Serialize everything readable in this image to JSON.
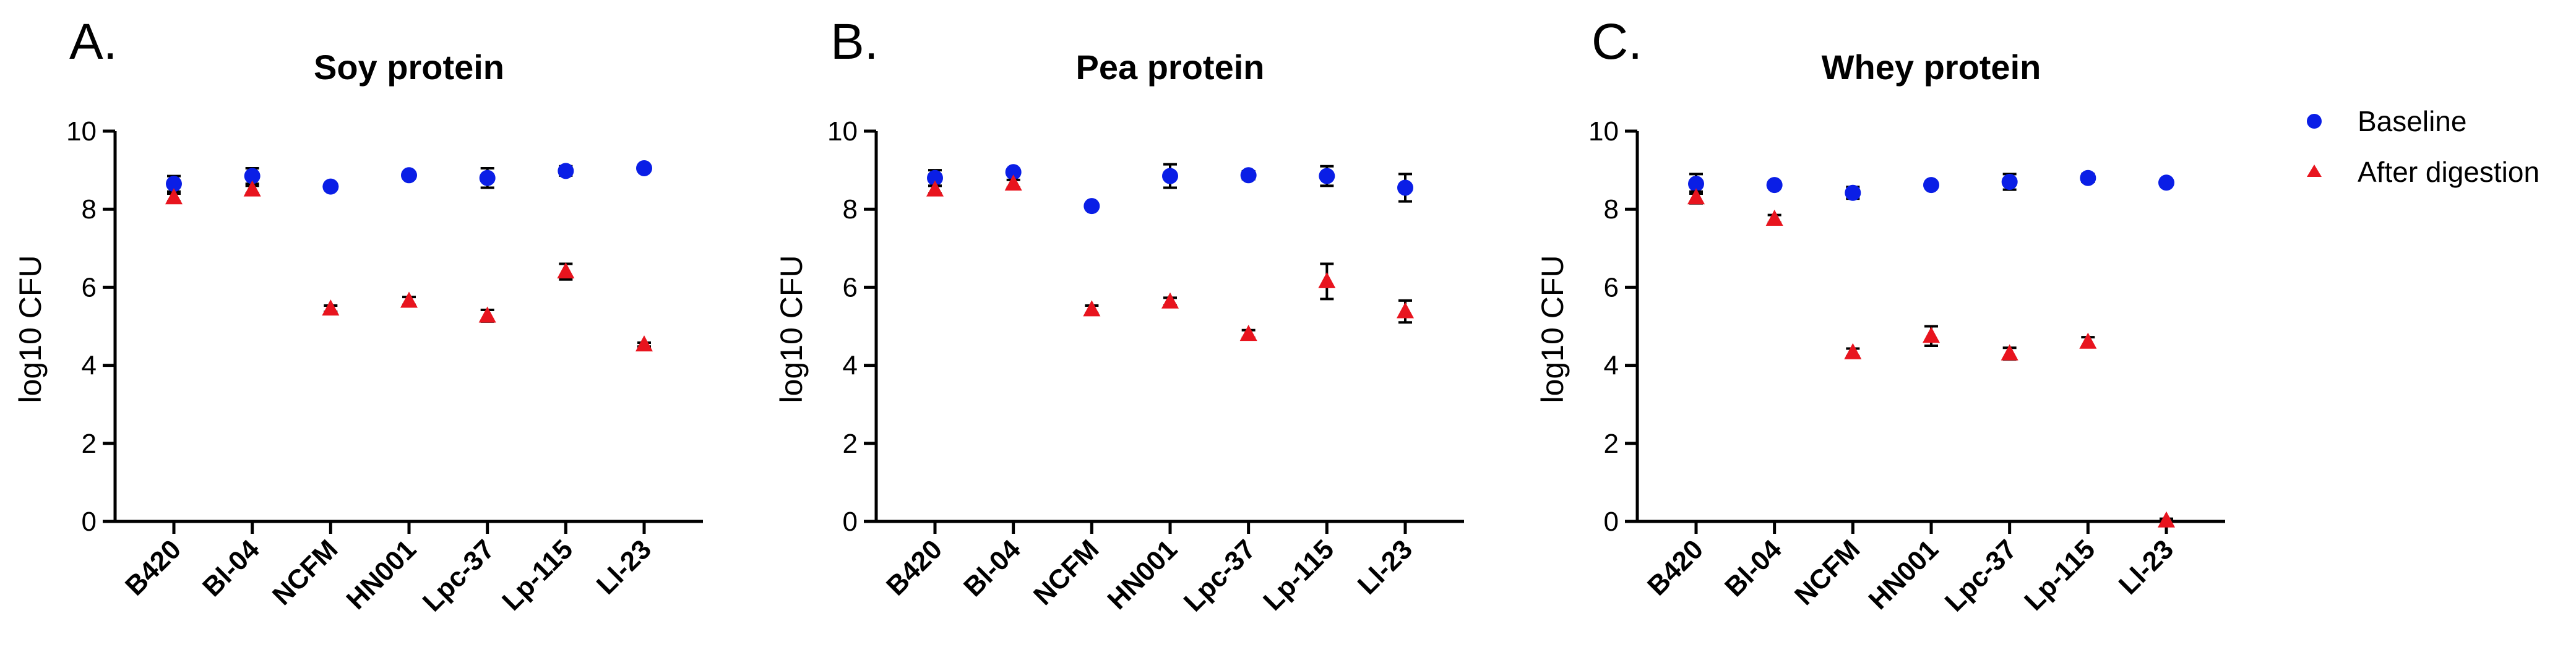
{
  "figure": {
    "legend": [
      {
        "name": "Baseline",
        "color": "#0a1ee6",
        "marker": "circle"
      },
      {
        "name": "After digestion",
        "color": "#e8141e",
        "marker": "triangle"
      }
    ]
  },
  "chart_data": [
    {
      "type": "scatter",
      "panel_letter": "A.",
      "title": "Soy protein",
      "ylabel": "log10 CFU",
      "xlabel": "",
      "ylim": [
        0,
        10
      ],
      "yticks": [
        0,
        2,
        4,
        6,
        8,
        10
      ],
      "categories": [
        "B420",
        "Bl-04",
        "NCFM",
        "HN001",
        "Lpc-37",
        "Lp-115",
        "Ll-23"
      ],
      "series": [
        {
          "name": "Baseline",
          "values": [
            8.65,
            8.85,
            8.58,
            8.87,
            8.8,
            8.98,
            9.05
          ],
          "errors": [
            0.2,
            0.2,
            0.05,
            0.05,
            0.25,
            0.12,
            0.05
          ]
        },
        {
          "name": "After digestion",
          "values": [
            8.3,
            8.5,
            5.45,
            5.65,
            5.27,
            6.4,
            4.53
          ],
          "errors": [
            0.1,
            0.1,
            0.08,
            0.1,
            0.15,
            0.2,
            0.05
          ]
        }
      ]
    },
    {
      "type": "scatter",
      "panel_letter": "B.",
      "title": "Pea protein",
      "ylabel": "log10 CFU",
      "xlabel": "",
      "ylim": [
        0,
        10
      ],
      "yticks": [
        0,
        2,
        4,
        6,
        8,
        10
      ],
      "categories": [
        "B420",
        "Bl-04",
        "NCFM",
        "HN001",
        "Lpc-37",
        "Lp-115",
        "Ll-23"
      ],
      "series": [
        {
          "name": "Baseline",
          "values": [
            8.8,
            8.95,
            8.08,
            8.85,
            8.87,
            8.85,
            8.55
          ],
          "errors": [
            0.2,
            0.05,
            0.05,
            0.3,
            0.1,
            0.25,
            0.35
          ]
        },
        {
          "name": "After digestion",
          "values": [
            8.5,
            8.65,
            5.43,
            5.63,
            4.8,
            6.15,
            5.38
          ],
          "errors": [
            0.1,
            0.1,
            0.1,
            0.1,
            0.1,
            0.45,
            0.28
          ]
        }
      ]
    },
    {
      "type": "scatter",
      "panel_letter": "C.",
      "title": "Whey protein",
      "ylabel": "log10 CFU",
      "xlabel": "",
      "ylim": [
        0,
        10
      ],
      "yticks": [
        0,
        2,
        4,
        6,
        8,
        10
      ],
      "categories": [
        "B420",
        "Bl-04",
        "NCFM",
        "HN001",
        "Lpc-37",
        "Lp-115",
        "Ll-23"
      ],
      "series": [
        {
          "name": "Baseline",
          "values": [
            8.65,
            8.62,
            8.42,
            8.62,
            8.7,
            8.8,
            8.68
          ],
          "errors": [
            0.25,
            0.05,
            0.15,
            0.05,
            0.2,
            0.1,
            0.05
          ]
        },
        {
          "name": "After digestion",
          "values": [
            8.3,
            7.75,
            4.33,
            4.75,
            4.3,
            4.6,
            0.02
          ],
          "errors": [
            0.15,
            0.1,
            0.1,
            0.25,
            0.15,
            0.12,
            0.05
          ]
        }
      ]
    }
  ]
}
